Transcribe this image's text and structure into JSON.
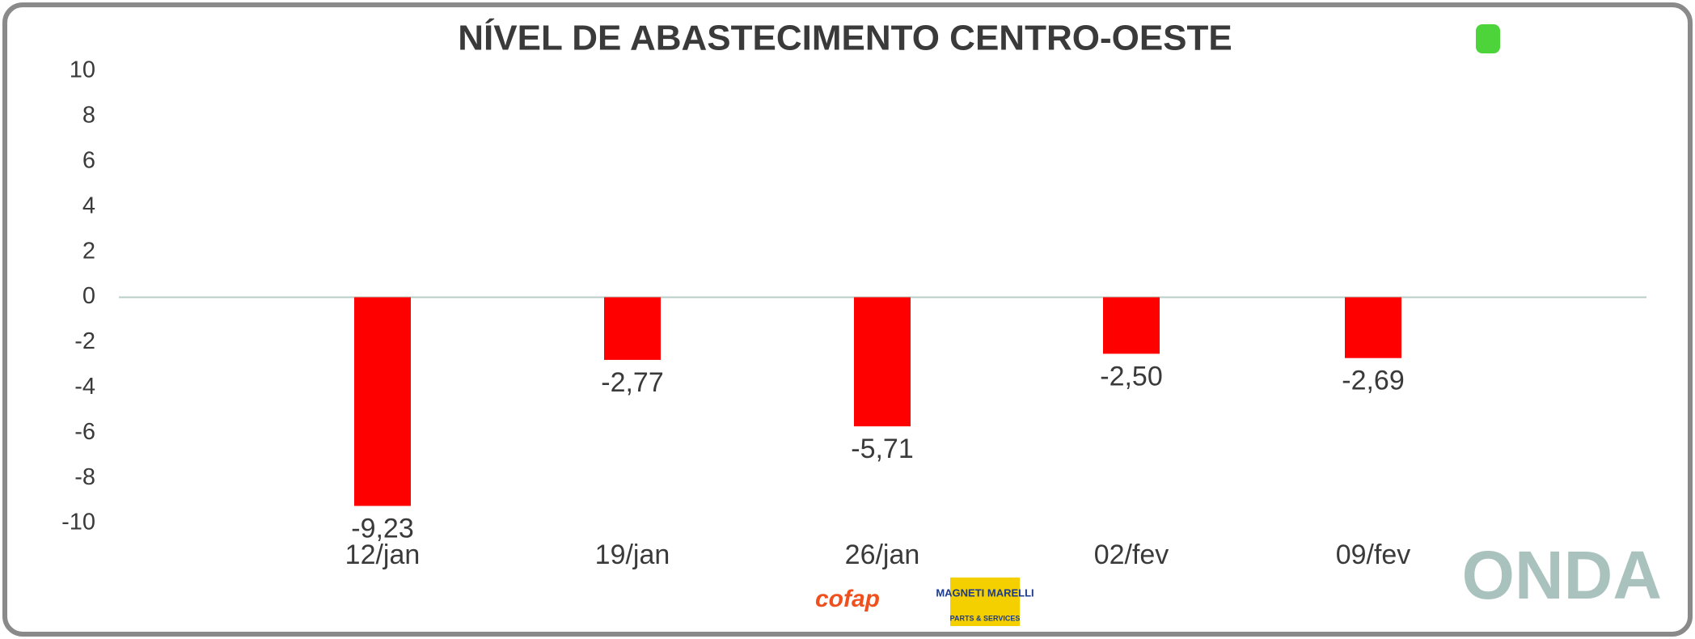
{
  "chart_data": {
    "type": "bar",
    "title": "NÍVEL DE ABASTECIMENTO CENTRO-OESTE",
    "categories": [
      "12/jan",
      "19/jan",
      "26/jan",
      "02/fev",
      "09/fev"
    ],
    "values": [
      -9.23,
      -2.77,
      -5.71,
      -2.5,
      -2.69
    ],
    "value_labels": [
      "-9,23",
      "-2,77",
      "-5,71",
      "-2,50",
      "-2,69"
    ],
    "color": "#ff0000",
    "ylim": [
      -10,
      10
    ],
    "yticks": [
      10,
      8,
      6,
      4,
      2,
      0,
      -2,
      -4,
      -6,
      -8,
      -10
    ],
    "grid": false
  },
  "logos": {
    "brand": "ONDA",
    "sponsor1": "cofap",
    "sponsor2": "MAGNETI MARELLI",
    "sponsor2_sub": "PARTS & SERVICES"
  }
}
